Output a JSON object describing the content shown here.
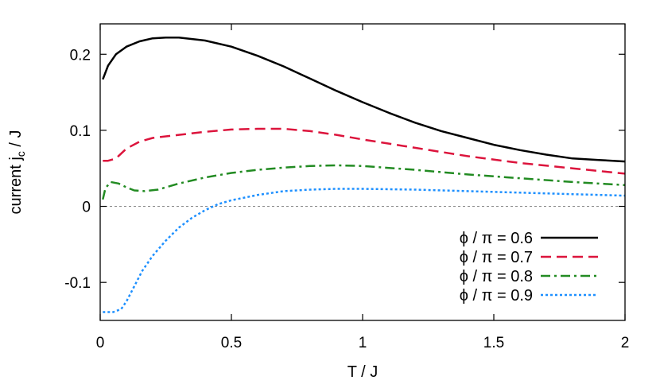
{
  "chart_data": {
    "type": "line",
    "xlabel": "T / J",
    "ylabel_main": "current  j",
    "ylabel_sub": "c",
    "ylabel_tail": " / J",
    "xlim": [
      0,
      2
    ],
    "ylim": [
      -0.15,
      0.24
    ],
    "xticks": [
      0,
      0.5,
      1,
      1.5,
      2
    ],
    "xtick_labels": [
      "0",
      "0.5",
      "1",
      "1.5",
      "2"
    ],
    "yticks": [
      -0.1,
      0,
      0.1,
      0.2
    ],
    "ytick_labels": [
      "-0.1",
      "0",
      "0.1",
      "0.2"
    ],
    "zero_line": true,
    "legend_position": "bottom-right",
    "series": [
      {
        "name": "ϕ / π = 0.6",
        "color": "#000000",
        "dash": "solid",
        "x": [
          0.01,
          0.03,
          0.06,
          0.1,
          0.15,
          0.2,
          0.25,
          0.3,
          0.4,
          0.5,
          0.6,
          0.7,
          0.8,
          0.9,
          1.0,
          1.1,
          1.2,
          1.3,
          1.4,
          1.5,
          1.6,
          1.7,
          1.8,
          1.9,
          2.0
        ],
        "y": [
          0.167,
          0.185,
          0.2,
          0.21,
          0.217,
          0.221,
          0.222,
          0.222,
          0.218,
          0.21,
          0.198,
          0.184,
          0.168,
          0.152,
          0.137,
          0.123,
          0.11,
          0.099,
          0.09,
          0.081,
          0.074,
          0.068,
          0.063,
          0.061,
          0.059
        ]
      },
      {
        "name": "ϕ / π = 0.7",
        "color": "#dc143c",
        "dash": "dashed",
        "x": [
          0.01,
          0.03,
          0.06,
          0.1,
          0.15,
          0.2,
          0.3,
          0.4,
          0.5,
          0.6,
          0.7,
          0.8,
          0.9,
          1.0,
          1.2,
          1.4,
          1.6,
          1.8,
          2.0
        ],
        "y": [
          0.06,
          0.06,
          0.063,
          0.076,
          0.085,
          0.09,
          0.094,
          0.098,
          0.101,
          0.102,
          0.102,
          0.099,
          0.094,
          0.088,
          0.077,
          0.066,
          0.057,
          0.05,
          0.043
        ]
      },
      {
        "name": "ϕ / π = 0.8",
        "color": "#228b22",
        "dash": "dashdot",
        "x": [
          0.01,
          0.02,
          0.04,
          0.07,
          0.1,
          0.13,
          0.17,
          0.22,
          0.3,
          0.4,
          0.5,
          0.6,
          0.7,
          0.8,
          0.9,
          1.0,
          1.2,
          1.4,
          1.6,
          1.8,
          2.0
        ],
        "y": [
          0.009,
          0.024,
          0.032,
          0.03,
          0.025,
          0.021,
          0.02,
          0.022,
          0.03,
          0.038,
          0.044,
          0.048,
          0.051,
          0.053,
          0.054,
          0.053,
          0.048,
          0.042,
          0.037,
          0.032,
          0.028
        ]
      },
      {
        "name": "ϕ / π = 0.9",
        "color": "#1e90ff",
        "dash": "dotted",
        "x": [
          0.01,
          0.05,
          0.08,
          0.1,
          0.13,
          0.16,
          0.2,
          0.25,
          0.3,
          0.35,
          0.4,
          0.45,
          0.5,
          0.6,
          0.7,
          0.8,
          0.9,
          1.0,
          1.2,
          1.4,
          1.6,
          1.8,
          2.0
        ],
        "y": [
          -0.139,
          -0.139,
          -0.135,
          -0.125,
          -0.105,
          -0.085,
          -0.065,
          -0.045,
          -0.028,
          -0.015,
          -0.005,
          0.003,
          0.008,
          0.015,
          0.02,
          0.022,
          0.023,
          0.023,
          0.022,
          0.02,
          0.018,
          0.016,
          0.014
        ]
      }
    ]
  }
}
